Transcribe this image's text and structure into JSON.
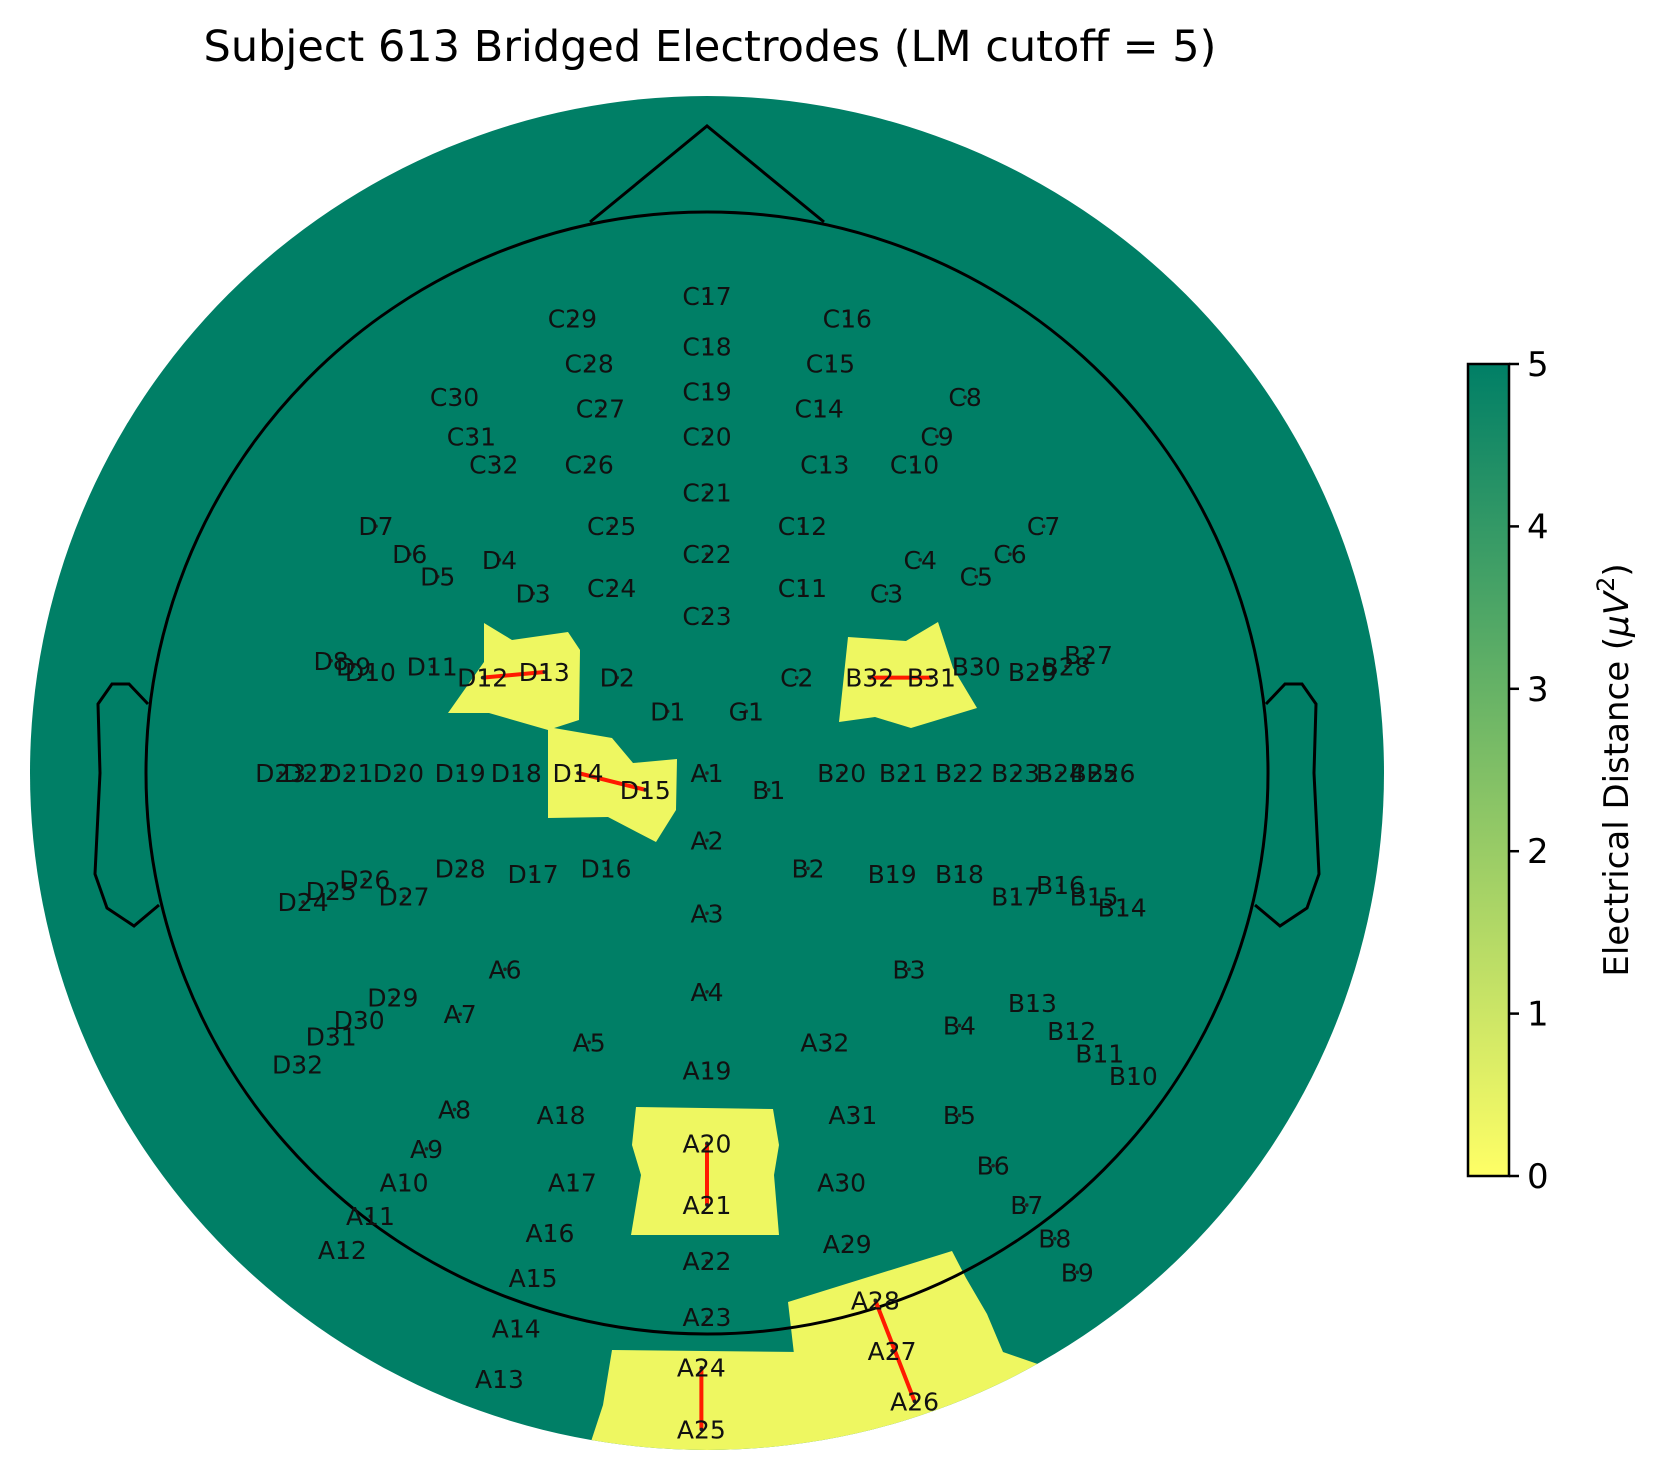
{
  "chart_data": {
    "type": "heatmap",
    "title": "Subject 613 Bridged Electrodes (LM cutoff = 5)",
    "colorbar": {
      "label": "Electrical Distance ($\\mu V^2$)",
      "range": [
        0,
        5
      ],
      "ticks": [
        "0",
        "1",
        "2",
        "3",
        "4",
        "5"
      ],
      "colormap": [
        "#ffff66",
        "#e6f466",
        "#c0e263",
        "#8fc86a",
        "#5aa96d",
        "#2b8f69",
        "#007f66"
      ]
    },
    "background_value": 5,
    "bridged_value": 0,
    "bridged_pairs": [
      [
        "D12",
        "D13"
      ],
      [
        "D14",
        "D15"
      ],
      [
        "B32",
        "B31"
      ],
      [
        "A20",
        "A21"
      ],
      [
        "A28",
        "A26"
      ],
      [
        "A24",
        "A25"
      ]
    ],
    "electrodes": [
      {
        "name": "C17",
        "x": 0.0,
        "y": 0.85
      },
      {
        "name": "C18",
        "x": 0.0,
        "y": 0.76
      },
      {
        "name": "C19",
        "x": 0.0,
        "y": 0.68
      },
      {
        "name": "C20",
        "x": 0.0,
        "y": 0.6
      },
      {
        "name": "C21",
        "x": 0.0,
        "y": 0.5
      },
      {
        "name": "C22",
        "x": 0.0,
        "y": 0.39
      },
      {
        "name": "C23",
        "x": 0.0,
        "y": 0.28
      },
      {
        "name": "C29",
        "x": -0.24,
        "y": 0.81
      },
      {
        "name": "C28",
        "x": -0.21,
        "y": 0.73
      },
      {
        "name": "C27",
        "x": -0.19,
        "y": 0.65
      },
      {
        "name": "C26",
        "x": -0.21,
        "y": 0.55
      },
      {
        "name": "C25",
        "x": -0.17,
        "y": 0.44
      },
      {
        "name": "C24",
        "x": -0.17,
        "y": 0.33
      },
      {
        "name": "C30",
        "x": -0.45,
        "y": 0.67
      },
      {
        "name": "C31",
        "x": -0.42,
        "y": 0.6
      },
      {
        "name": "C32",
        "x": -0.38,
        "y": 0.55
      },
      {
        "name": "C16",
        "x": 0.25,
        "y": 0.81
      },
      {
        "name": "C15",
        "x": 0.22,
        "y": 0.73
      },
      {
        "name": "C14",
        "x": 0.2,
        "y": 0.65
      },
      {
        "name": "C13",
        "x": 0.21,
        "y": 0.55
      },
      {
        "name": "C12",
        "x": 0.17,
        "y": 0.44
      },
      {
        "name": "C11",
        "x": 0.17,
        "y": 0.33
      },
      {
        "name": "C10",
        "x": 0.37,
        "y": 0.55
      },
      {
        "name": "C9",
        "x": 0.41,
        "y": 0.6
      },
      {
        "name": "C8",
        "x": 0.46,
        "y": 0.67
      },
      {
        "name": "C7",
        "x": 0.6,
        "y": 0.44
      },
      {
        "name": "C6",
        "x": 0.54,
        "y": 0.39
      },
      {
        "name": "C5",
        "x": 0.48,
        "y": 0.35
      },
      {
        "name": "C4",
        "x": 0.38,
        "y": 0.38
      },
      {
        "name": "C3",
        "x": 0.32,
        "y": 0.32
      },
      {
        "name": "C2",
        "x": 0.16,
        "y": 0.17
      },
      {
        "name": "G1",
        "x": 0.07,
        "y": 0.11
      },
      {
        "name": "D1",
        "x": -0.07,
        "y": 0.11
      },
      {
        "name": "D2",
        "x": -0.16,
        "y": 0.17
      },
      {
        "name": "D3",
        "x": -0.31,
        "y": 0.32
      },
      {
        "name": "D4",
        "x": -0.37,
        "y": 0.38
      },
      {
        "name": "D5",
        "x": -0.48,
        "y": 0.35
      },
      {
        "name": "D6",
        "x": -0.53,
        "y": 0.39
      },
      {
        "name": "D7",
        "x": -0.59,
        "y": 0.44
      },
      {
        "name": "D8",
        "x": -0.67,
        "y": 0.2
      },
      {
        "name": "D9",
        "x": -0.63,
        "y": 0.19
      },
      {
        "name": "D10",
        "x": -0.6,
        "y": 0.18
      },
      {
        "name": "D11",
        "x": -0.49,
        "y": 0.19
      },
      {
        "name": "D12",
        "x": -0.4,
        "y": 0.17
      },
      {
        "name": "D13",
        "x": -0.29,
        "y": 0.18
      },
      {
        "name": "D14",
        "x": -0.23,
        "y": 0.0
      },
      {
        "name": "D15",
        "x": -0.11,
        "y": -0.03
      },
      {
        "name": "D16",
        "x": -0.18,
        "y": -0.17
      },
      {
        "name": "D17",
        "x": -0.31,
        "y": -0.18
      },
      {
        "name": "D18",
        "x": -0.34,
        "y": 0.0
      },
      {
        "name": "D19",
        "x": -0.44,
        "y": 0.0
      },
      {
        "name": "D20",
        "x": -0.55,
        "y": 0.0
      },
      {
        "name": "D21",
        "x": -0.64,
        "y": 0.0
      },
      {
        "name": "D22",
        "x": -0.71,
        "y": 0.0
      },
      {
        "name": "D23",
        "x": -0.76,
        "y": 0.0
      },
      {
        "name": "D24",
        "x": -0.72,
        "y": -0.23
      },
      {
        "name": "D25",
        "x": -0.67,
        "y": -0.21
      },
      {
        "name": "D26",
        "x": -0.61,
        "y": -0.19
      },
      {
        "name": "D27",
        "x": -0.54,
        "y": -0.22
      },
      {
        "name": "D28",
        "x": -0.44,
        "y": -0.17
      },
      {
        "name": "D29",
        "x": -0.56,
        "y": -0.4
      },
      {
        "name": "D30",
        "x": -0.62,
        "y": -0.44
      },
      {
        "name": "D31",
        "x": -0.67,
        "y": -0.47
      },
      {
        "name": "D32",
        "x": -0.73,
        "y": -0.52
      },
      {
        "name": "A1",
        "x": 0.0,
        "y": 0.0
      },
      {
        "name": "A2",
        "x": 0.0,
        "y": -0.12
      },
      {
        "name": "A3",
        "x": 0.0,
        "y": -0.25
      },
      {
        "name": "A4",
        "x": 0.0,
        "y": -0.39
      },
      {
        "name": "A5",
        "x": -0.21,
        "y": -0.48
      },
      {
        "name": "A6",
        "x": -0.36,
        "y": -0.35
      },
      {
        "name": "A7",
        "x": -0.44,
        "y": -0.43
      },
      {
        "name": "A8",
        "x": -0.45,
        "y": -0.6
      },
      {
        "name": "A9",
        "x": -0.5,
        "y": -0.67
      },
      {
        "name": "A10",
        "x": -0.54,
        "y": -0.73
      },
      {
        "name": "A11",
        "x": -0.6,
        "y": -0.79
      },
      {
        "name": "A12",
        "x": -0.65,
        "y": -0.85
      },
      {
        "name": "A13",
        "x": -0.37,
        "y": -1.08
      },
      {
        "name": "A14",
        "x": -0.34,
        "y": -0.99
      },
      {
        "name": "A15",
        "x": -0.31,
        "y": -0.9
      },
      {
        "name": "A16",
        "x": -0.28,
        "y": -0.82
      },
      {
        "name": "A17",
        "x": -0.24,
        "y": -0.73
      },
      {
        "name": "A18",
        "x": -0.26,
        "y": -0.61
      },
      {
        "name": "A19",
        "x": 0.0,
        "y": -0.53
      },
      {
        "name": "A20",
        "x": 0.0,
        "y": -0.66
      },
      {
        "name": "A21",
        "x": 0.0,
        "y": -0.77
      },
      {
        "name": "A22",
        "x": 0.0,
        "y": -0.87
      },
      {
        "name": "A23",
        "x": 0.0,
        "y": -0.97
      },
      {
        "name": "A24",
        "x": -0.01,
        "y": -1.06
      },
      {
        "name": "A25",
        "x": -0.01,
        "y": -1.17
      },
      {
        "name": "A26",
        "x": 0.37,
        "y": -1.12
      },
      {
        "name": "A27",
        "x": 0.33,
        "y": -1.03
      },
      {
        "name": "A28",
        "x": 0.3,
        "y": -0.94
      },
      {
        "name": "A29",
        "x": 0.25,
        "y": -0.84
      },
      {
        "name": "A30",
        "x": 0.24,
        "y": -0.73
      },
      {
        "name": "A31",
        "x": 0.26,
        "y": -0.61
      },
      {
        "name": "A32",
        "x": 0.21,
        "y": -0.48
      },
      {
        "name": "B1",
        "x": 0.11,
        "y": -0.03
      },
      {
        "name": "B2",
        "x": 0.18,
        "y": -0.17
      },
      {
        "name": "B3",
        "x": 0.36,
        "y": -0.35
      },
      {
        "name": "B4",
        "x": 0.45,
        "y": -0.45
      },
      {
        "name": "B5",
        "x": 0.45,
        "y": -0.61
      },
      {
        "name": "B6",
        "x": 0.51,
        "y": -0.7
      },
      {
        "name": "B7",
        "x": 0.57,
        "y": -0.77
      },
      {
        "name": "B8",
        "x": 0.62,
        "y": -0.83
      },
      {
        "name": "B9",
        "x": 0.66,
        "y": -0.89
      },
      {
        "name": "B10",
        "x": 0.76,
        "y": -0.54
      },
      {
        "name": "B11",
        "x": 0.7,
        "y": -0.5
      },
      {
        "name": "B12",
        "x": 0.65,
        "y": -0.46
      },
      {
        "name": "B13",
        "x": 0.58,
        "y": -0.41
      },
      {
        "name": "B14",
        "x": 0.74,
        "y": -0.24
      },
      {
        "name": "B15",
        "x": 0.69,
        "y": -0.22
      },
      {
        "name": "B16",
        "x": 0.63,
        "y": -0.2
      },
      {
        "name": "B17",
        "x": 0.55,
        "y": -0.22
      },
      {
        "name": "B18",
        "x": 0.45,
        "y": -0.18
      },
      {
        "name": "B19",
        "x": 0.33,
        "y": -0.18
      },
      {
        "name": "B20",
        "x": 0.24,
        "y": 0.0
      },
      {
        "name": "B21",
        "x": 0.35,
        "y": 0.0
      },
      {
        "name": "B22",
        "x": 0.45,
        "y": 0.0
      },
      {
        "name": "B23",
        "x": 0.55,
        "y": 0.0
      },
      {
        "name": "B24",
        "x": 0.63,
        "y": 0.0
      },
      {
        "name": "B25",
        "x": 0.69,
        "y": 0.0
      },
      {
        "name": "B26",
        "x": 0.72,
        "y": 0.0
      },
      {
        "name": "B27",
        "x": 0.68,
        "y": 0.21
      },
      {
        "name": "B28",
        "x": 0.64,
        "y": 0.19
      },
      {
        "name": "B29",
        "x": 0.58,
        "y": 0.18
      },
      {
        "name": "B30",
        "x": 0.48,
        "y": 0.19
      },
      {
        "name": "B31",
        "x": 0.4,
        "y": 0.17
      },
      {
        "name": "B32",
        "x": 0.29,
        "y": 0.17
      }
    ]
  }
}
